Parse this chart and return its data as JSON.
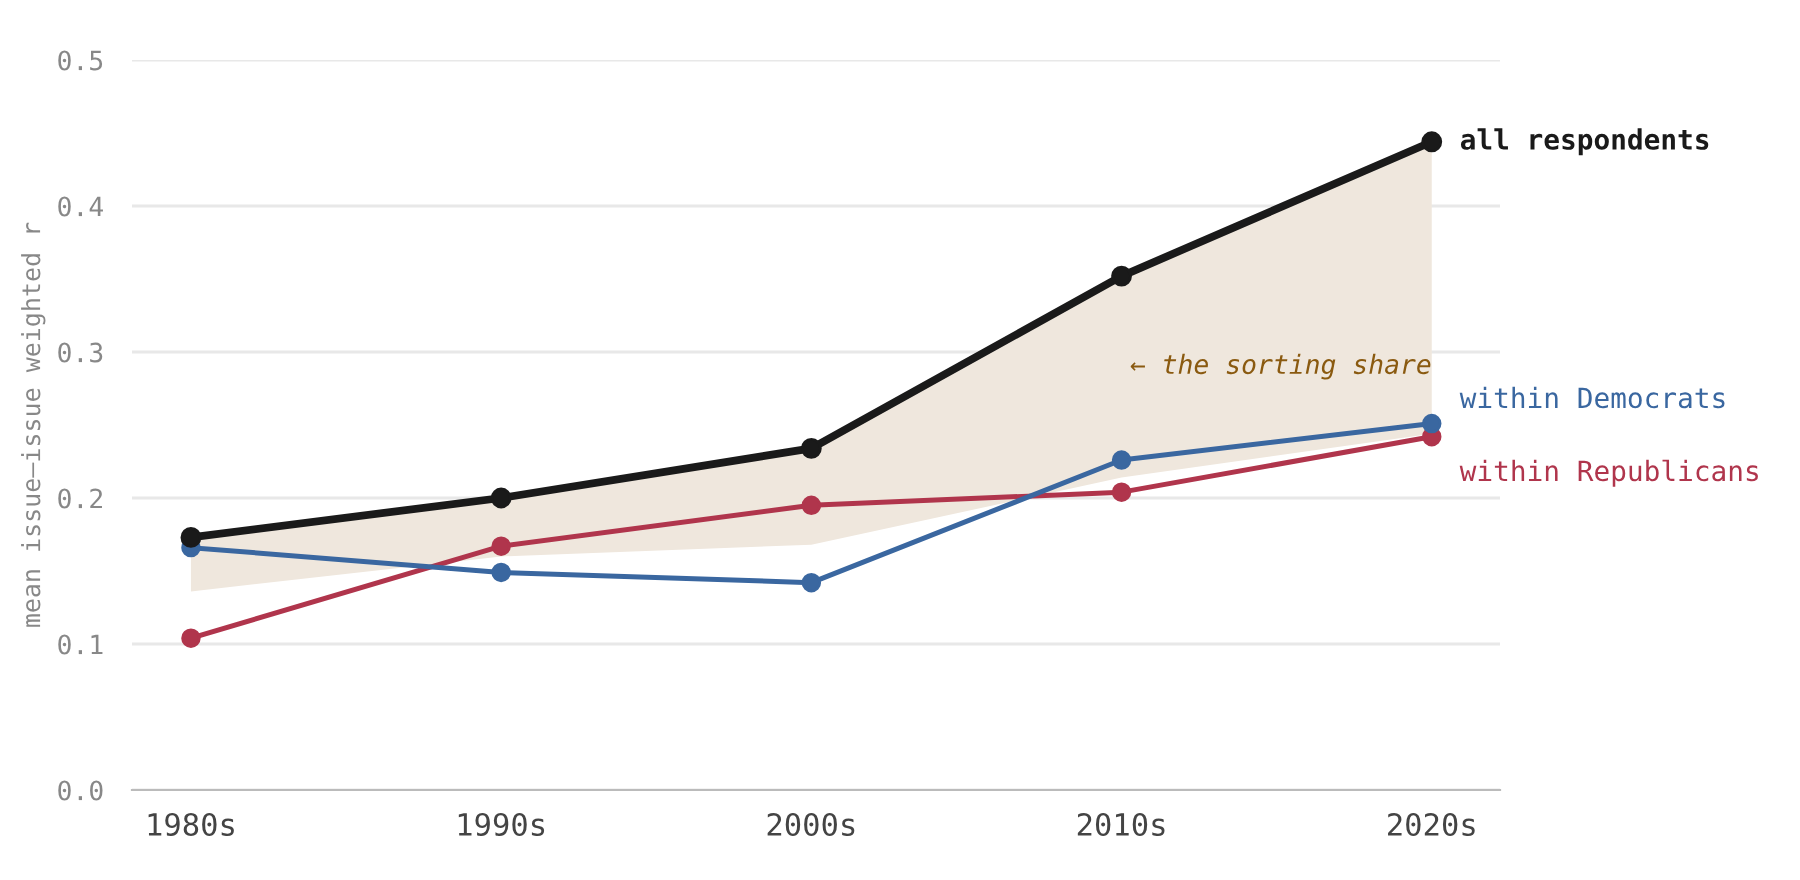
{
  "chart_data": {
    "type": "line",
    "ylabel": "mean issue–issue weighted r",
    "categories": [
      "1980s",
      "1990s",
      "2000s",
      "2010s",
      "2020s"
    ],
    "series": [
      {
        "name": "all respondents",
        "color": "#1a1a1a",
        "values": [
          0.173,
          0.2,
          0.234,
          0.352,
          0.444
        ],
        "lower": [
          0.136,
          0.16,
          0.168,
          0.214,
          0.244
        ],
        "upper": [
          0.173,
          0.2,
          0.234,
          0.352,
          0.444
        ]
      },
      {
        "name": "within Democrats",
        "color": "#3a67a0",
        "values": [
          0.166,
          0.149,
          0.142,
          0.226,
          0.251
        ]
      },
      {
        "name": "within Republicans",
        "color": "#b0354c",
        "values": [
          0.104,
          0.167,
          0.195,
          0.204,
          0.242
        ]
      }
    ],
    "annotations": [
      "← the sorting share"
    ],
    "ylim": [
      0,
      0.5
    ],
    "yticks": [
      {
        "value": 0,
        "label": "0.0"
      },
      0.1,
      0.2,
      0.3,
      0.4,
      0.5
    ],
    "grid": "y",
    "legend": false,
    "marker": "circle",
    "line_style": "solid"
  }
}
